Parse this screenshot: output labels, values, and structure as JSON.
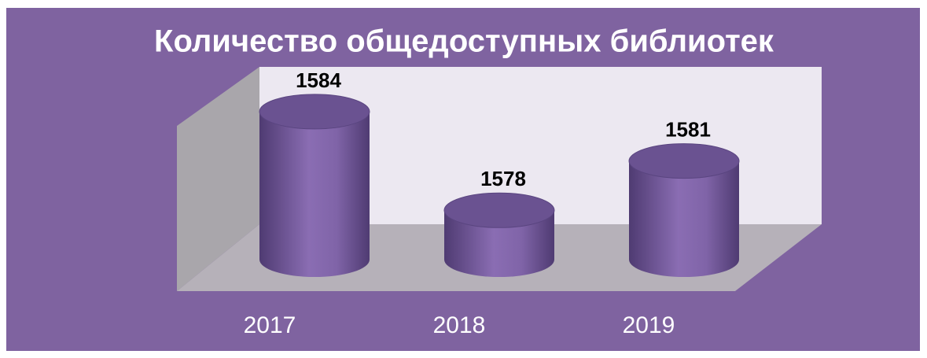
{
  "chart_data": {
    "type": "bar3d",
    "title": "Количество общедоступных библиотек",
    "categories": [
      "2017",
      "2018",
      "2019"
    ],
    "values": [
      1584,
      1578,
      1581
    ],
    "color": "#8469ab",
    "ylim": [
      1575,
      1585
    ]
  }
}
